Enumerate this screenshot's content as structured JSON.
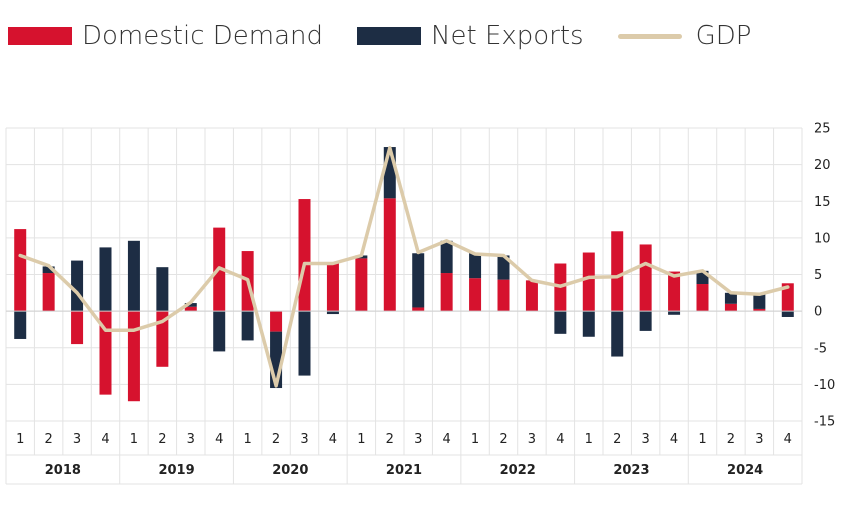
{
  "chart_data": {
    "type": "bar",
    "title": "",
    "xlabel": "",
    "ylabel": "",
    "ylim": [
      -15,
      25
    ],
    "yticks": [
      25,
      20,
      15,
      10,
      5,
      0,
      -5,
      -10,
      -15
    ],
    "grid": true,
    "legend_position": "top-left",
    "years": [
      "2018",
      "2019",
      "2020",
      "2021",
      "2022",
      "2023",
      "2024"
    ],
    "categories": [
      "1",
      "2",
      "3",
      "4",
      "1",
      "2",
      "3",
      "4",
      "1",
      "2",
      "3",
      "4",
      "1",
      "2",
      "3",
      "4",
      "1",
      "2",
      "3",
      "4",
      "1",
      "2",
      "3",
      "4",
      "1",
      "2",
      "3",
      "4"
    ],
    "series": [
      {
        "name": "Domestic Demand",
        "kind": "bar",
        "color": "#d6122e",
        "values": [
          11.2,
          5.2,
          -4.5,
          -11.4,
          -12.3,
          -7.6,
          0.6,
          11.4,
          8.2,
          -2.8,
          15.3,
          6.6,
          7.2,
          15.4,
          0.5,
          5.2,
          4.5,
          4.3,
          4.2,
          6.5,
          8.0,
          10.9,
          9.1,
          5.4,
          3.7,
          1.0,
          0.3,
          3.8
        ]
      },
      {
        "name": "Net Exports",
        "kind": "bar",
        "color": "#1d2d44",
        "values": [
          -3.8,
          0.9,
          6.9,
          8.7,
          9.6,
          6.0,
          0.5,
          -5.5,
          -4.0,
          -7.7,
          -8.8,
          -0.4,
          0.4,
          7.0,
          7.4,
          4.4,
          3.4,
          3.3,
          0.0,
          -3.1,
          -3.5,
          -6.2,
          -2.7,
          -0.5,
          1.8,
          1.5,
          2.0,
          -0.8
        ]
      },
      {
        "name": "GDP",
        "kind": "line",
        "color": "#dccbaa",
        "values": [
          7.6,
          6.2,
          2.5,
          -2.6,
          -2.6,
          -1.4,
          1.2,
          5.9,
          4.3,
          -10.2,
          6.5,
          6.5,
          7.6,
          22.3,
          8.0,
          9.6,
          7.8,
          7.6,
          4.2,
          3.4,
          4.6,
          4.7,
          6.5,
          4.8,
          5.5,
          2.5,
          2.3,
          3.3
        ]
      }
    ]
  }
}
